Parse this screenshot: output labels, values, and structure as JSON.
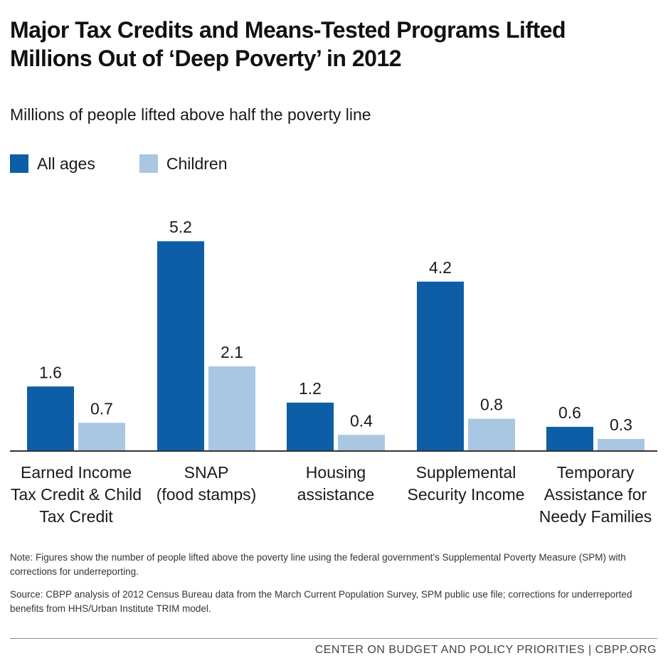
{
  "title": "Major Tax Credits and Means-Tested Programs Lifted Millions Out of ‘Deep Poverty’ in 2012",
  "colors": {
    "all_ages": "#0d5ea6",
    "children": "#a9c7e2",
    "axis": "#333333"
  },
  "chart_data": {
    "type": "bar",
    "subtitle": "Millions of people lifted above half the poverty line",
    "legend_position": "top-left",
    "grid": false,
    "ylim": [
      0,
      5.2
    ],
    "categories": [
      [
        "Earned Income",
        "Tax Credit & Child",
        "Tax Credit"
      ],
      [
        "SNAP",
        "(food stamps)"
      ],
      [
        "Housing",
        "assistance"
      ],
      [
        "Supplemental",
        "Security Income"
      ],
      [
        "Temporary",
        "Assistance for",
        "Needy Families"
      ]
    ],
    "series": [
      {
        "name": "All ages",
        "values": [
          1.6,
          5.2,
          1.2,
          4.2,
          0.6
        ]
      },
      {
        "name": "Children",
        "values": [
          0.7,
          2.1,
          0.4,
          0.8,
          0.3
        ]
      }
    ],
    "data_labels": [
      [
        "1.6",
        "5.2",
        "1.2",
        "4.2",
        "0.6"
      ],
      [
        "0.7",
        "2.1",
        "0.4",
        "0.8",
        "0.3"
      ]
    ]
  },
  "note": "Note: Figures show the number of people lifted above the poverty line using the federal government’s Supplemental Poverty Measure (SPM) with corrections for underreporting.",
  "source": "Source: CBPP analysis of 2012 Census Bureau data from the March Current Population Survey, SPM public use file; corrections for underreported benefits from HHS/Urban Institute TRIM model.",
  "footer": "CENTER ON BUDGET AND POLICY PRIORITIES | CBPP.ORG"
}
